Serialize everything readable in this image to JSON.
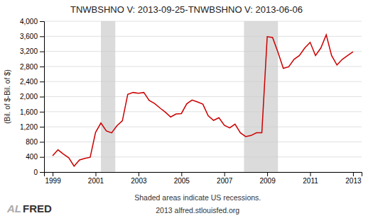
{
  "chart_data": {
    "type": "line",
    "title": "TNWBSHNO V: 2013-09-25-TNWBSHNO V: 2013-06-06",
    "ylabel": "(Bil. of $-Bil. of $)",
    "x": [
      1999.0,
      1999.25,
      1999.5,
      1999.75,
      2000.0,
      2000.25,
      2000.5,
      2000.75,
      2001.0,
      2001.25,
      2001.5,
      2001.75,
      2002.0,
      2002.25,
      2002.5,
      2002.75,
      2003.0,
      2003.25,
      2003.5,
      2003.75,
      2004.0,
      2004.25,
      2004.5,
      2004.75,
      2005.0,
      2005.25,
      2005.5,
      2005.75,
      2006.0,
      2006.25,
      2006.5,
      2006.75,
      2007.0,
      2007.25,
      2007.5,
      2007.75,
      2008.0,
      2008.25,
      2008.5,
      2008.75,
      2009.0,
      2009.25,
      2009.5,
      2009.75,
      2010.0,
      2010.25,
      2010.5,
      2010.75,
      2011.0,
      2011.25,
      2011.5,
      2011.75,
      2012.0,
      2012.25,
      2012.5,
      2012.75,
      2013.0
    ],
    "values": [
      430,
      590,
      475,
      380,
      155,
      320,
      360,
      390,
      1050,
      1300,
      1090,
      1040,
      1230,
      1360,
      2060,
      2110,
      2090,
      2110,
      1900,
      1820,
      1700,
      1590,
      1460,
      1540,
      1550,
      1810,
      1910,
      1860,
      1800,
      1490,
      1370,
      1440,
      1240,
      1170,
      1270,
      1040,
      940,
      970,
      1040,
      1040,
      3590,
      3570,
      3180,
      2750,
      2790,
      2990,
      3090,
      3290,
      3440,
      3090,
      3290,
      3640,
      3090,
      2840,
      2990,
      3090,
      3190
    ],
    "color": "#cc0000",
    "xlim": [
      1998.6,
      2013.4
    ],
    "xticks": [
      1999,
      2001,
      2003,
      2005,
      2007,
      2009,
      2011,
      2013
    ],
    "ylim": [
      0,
      4000
    ],
    "yticks": [
      0,
      400,
      800,
      {
        "value": 1200,
        "label": "1,200"
      },
      {
        "value": 1600,
        "label": "1,600"
      },
      {
        "value": 2000,
        "label": "2,000"
      },
      {
        "value": 2400,
        "label": "2,400"
      },
      {
        "value": 2800,
        "label": "2,800"
      },
      {
        "value": 3200,
        "label": "3,200"
      },
      {
        "value": 3600,
        "label": "3,600"
      },
      {
        "value": 4000,
        "label": "4,000"
      }
    ],
    "grid": true,
    "recession_bands": [
      [
        2001.25,
        2001.92
      ],
      [
        2007.92,
        2009.5
      ]
    ],
    "annotations": [
      "Shaded areas indicate US recessions.",
      "2013 alfred.stlouisfed.org",
      "AL",
      "FRED"
    ]
  }
}
